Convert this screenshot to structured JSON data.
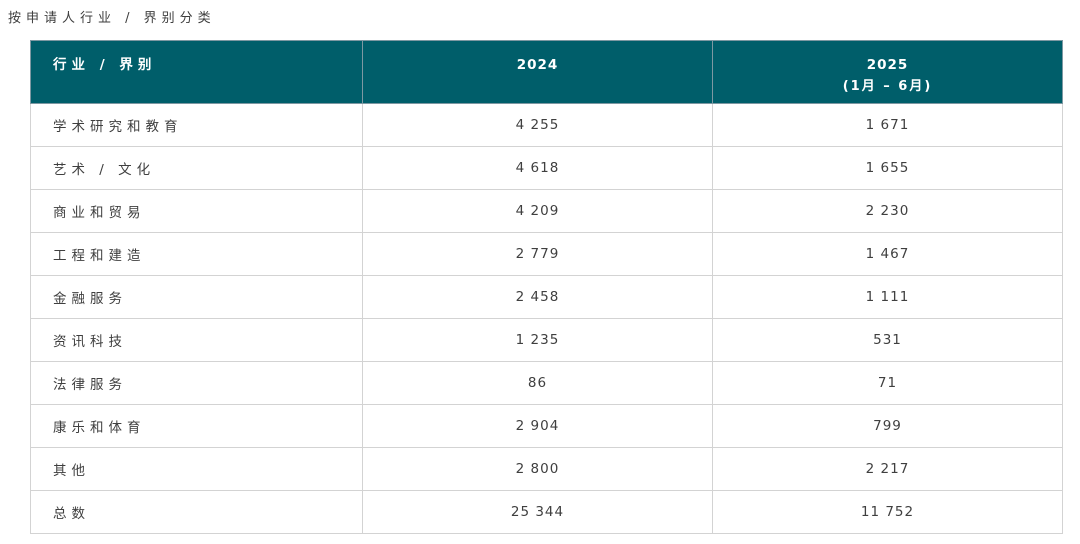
{
  "page_title": "按申请人行业 / 界别分类",
  "colors": {
    "header_bg": "#005e6a",
    "header_text": "#ffffff",
    "header_divider": "#7e98a2",
    "body_text": "#3f3f3f",
    "border": "#d3d3d3",
    "background": "#ffffff"
  },
  "table": {
    "columns": [
      {
        "label": "行业 / 界别"
      },
      {
        "label": "2024"
      },
      {
        "label": "2025",
        "sublabel": "(1月 – 6月)"
      }
    ],
    "rows": [
      {
        "label": "学术研究和教育",
        "v2024": "4 255",
        "v2025": "1 671"
      },
      {
        "label": "艺术 / 文化",
        "v2024": "4 618",
        "v2025": "1 655"
      },
      {
        "label": "商业和贸易",
        "v2024": "4 209",
        "v2025": "2 230"
      },
      {
        "label": "工程和建造",
        "v2024": "2 779",
        "v2025": "1 467"
      },
      {
        "label": "金融服务",
        "v2024": "2 458",
        "v2025": "1 111"
      },
      {
        "label": "资讯科技",
        "v2024": "1 235",
        "v2025": "531"
      },
      {
        "label": "法律服务",
        "v2024": "86",
        "v2025": "71"
      },
      {
        "label": "康乐和体育",
        "v2024": "2 904",
        "v2025": "799"
      },
      {
        "label": "其他",
        "v2024": "2 800",
        "v2025": "2 217"
      },
      {
        "label": "总数",
        "v2024": "25 344",
        "v2025": "11 752"
      }
    ]
  },
  "chart_data": {
    "type": "table",
    "title": "按申请人行业 / 界别分类",
    "categories": [
      "学术研究和教育",
      "艺术 / 文化",
      "商业和贸易",
      "工程和建造",
      "金融服务",
      "资讯科技",
      "法律服务",
      "康乐和体育",
      "其他",
      "总数"
    ],
    "series": [
      {
        "name": "2024",
        "values": [
          4255,
          4618,
          4209,
          2779,
          2458,
          1235,
          86,
          2904,
          2800,
          25344
        ]
      },
      {
        "name": "2025 (1月 – 6月)",
        "values": [
          1671,
          1655,
          2230,
          1467,
          1111,
          531,
          71,
          799,
          2217,
          11752
        ]
      }
    ]
  }
}
